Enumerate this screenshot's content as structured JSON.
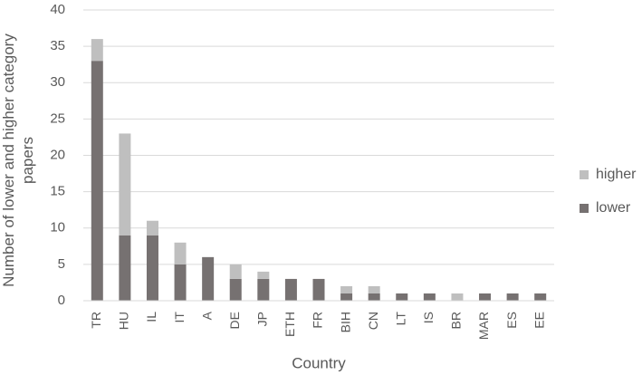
{
  "chart_data": {
    "type": "stacked_bar",
    "x_label": "Country",
    "y_label": "Number of lower and higher category papers",
    "categories": [
      "TR",
      "HU",
      "IL",
      "IT",
      "A",
      "DE",
      "JP",
      "ETH",
      "FR",
      "BIH",
      "CN",
      "LT",
      "IS",
      "BR",
      "MAR",
      "ES",
      "EE"
    ],
    "series": [
      {
        "name": "lower",
        "color": "#767171",
        "values": [
          33,
          9,
          9,
          5,
          6,
          3,
          3,
          3,
          3,
          1,
          1,
          1,
          1,
          0,
          1,
          1,
          1
        ]
      },
      {
        "name": "higher",
        "color": "#bfbfbf",
        "values": [
          3,
          14,
          2,
          3,
          0,
          2,
          1,
          0,
          0,
          1,
          1,
          0,
          0,
          1,
          0,
          0,
          0
        ]
      }
    ],
    "ylim": [
      0,
      40
    ],
    "yticks": [
      0,
      5,
      10,
      15,
      20,
      25,
      30,
      35,
      40
    ],
    "grid": true,
    "legend": "right"
  }
}
